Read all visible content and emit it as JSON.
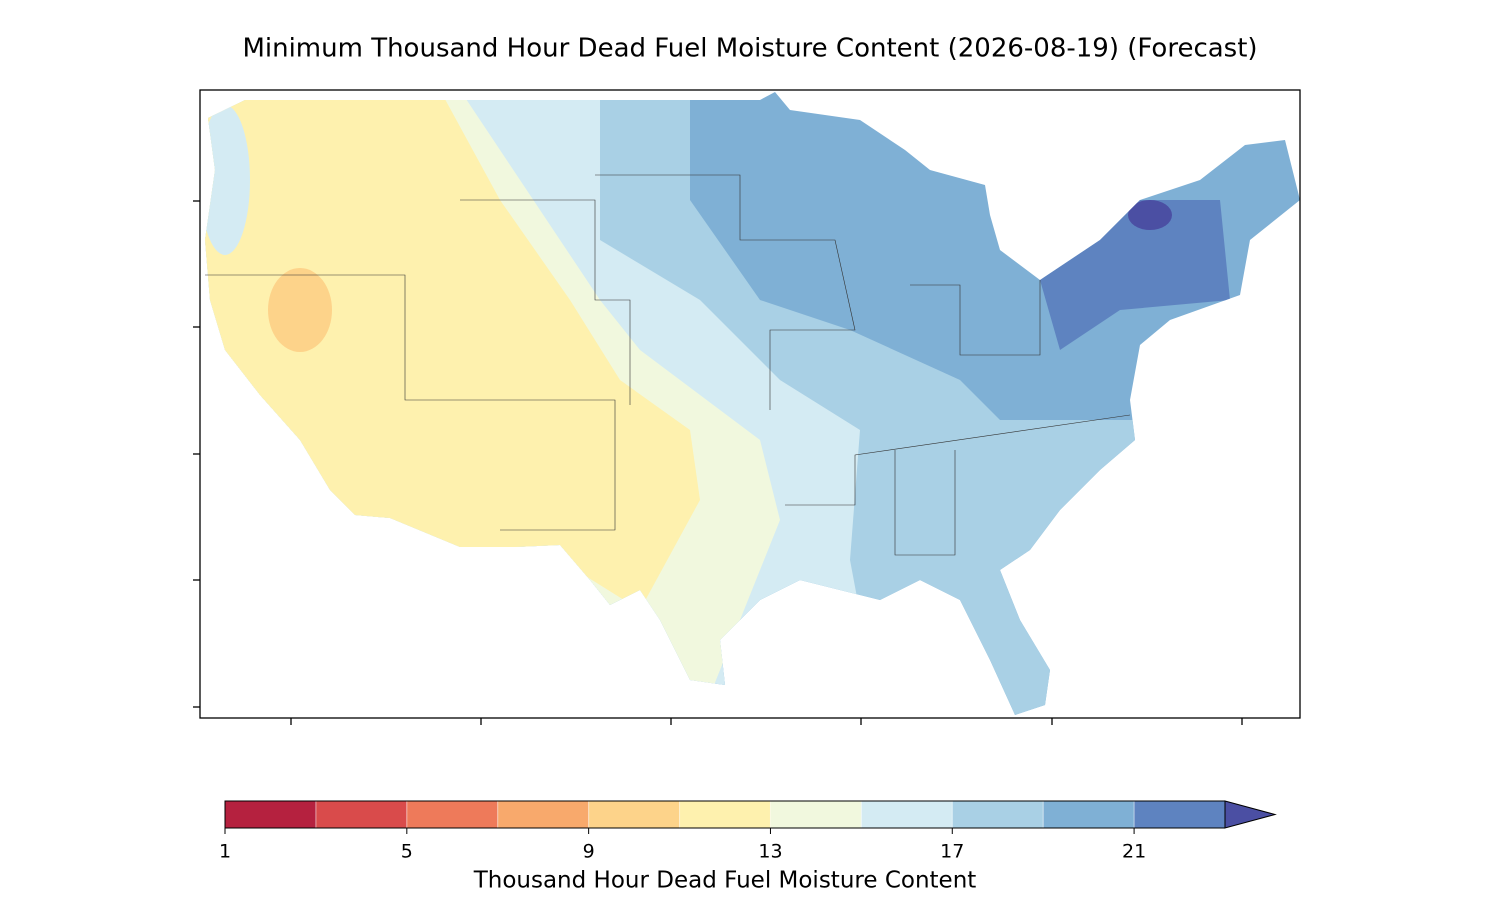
{
  "chart_data": {
    "type": "map",
    "title": "Minimum Thousand Hour Dead Fuel Moisture Content (2026-08-19) (Forecast)",
    "colorbar": {
      "label": "Thousand Hour Dead Fuel Moisture Content",
      "levels": [
        1,
        3,
        5,
        7,
        9,
        11,
        13,
        15,
        17,
        19,
        21,
        23
      ],
      "colors": [
        "#b5213f",
        "#d94b4b",
        "#ee7a5a",
        "#f8a96c",
        "#fdd38a",
        "#fef1ae",
        "#f1f8de",
        "#d4ebf3",
        "#a9d0e5",
        "#7fb0d5",
        "#5e83c0",
        "#4b4fa3"
      ],
      "extend": "max",
      "ticks": [
        1,
        5,
        9,
        13,
        17,
        21
      ]
    }
  }
}
